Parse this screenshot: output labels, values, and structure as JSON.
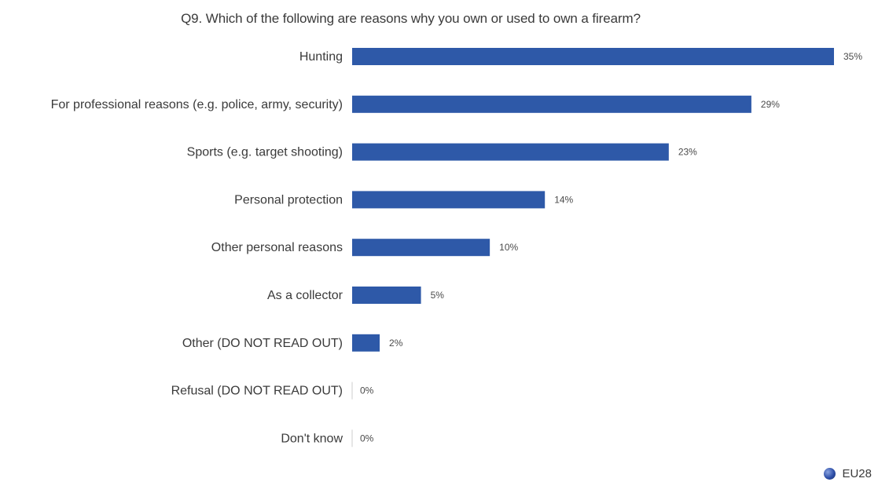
{
  "chart_data": {
    "type": "bar",
    "orientation": "horizontal",
    "title": "Q9. Which of the following are reasons why you own or used to own a firearm?",
    "categories": [
      "Hunting",
      "For professional reasons (e.g. police, army, security)",
      "Sports (e.g. target shooting)",
      "Personal protection",
      "Other personal reasons",
      "As a collector",
      "Other (DO NOT READ OUT)",
      "Refusal (DO NOT READ OUT)",
      "Don't know"
    ],
    "series": [
      {
        "name": "EU28",
        "values": [
          35,
          29,
          23,
          14,
          10,
          5,
          2,
          0,
          0
        ],
        "value_labels": [
          "35%",
          "29%",
          "23%",
          "14%",
          "10%",
          "5%",
          "2%",
          "0%",
          "0%"
        ]
      }
    ],
    "unit": "%",
    "xlim": [
      0,
      35
    ],
    "grid": false,
    "legend_position": "bottom-right"
  },
  "colors": {
    "bar": "#2e59a8",
    "baseline": "#cccccc",
    "text": "#3a3a3a"
  }
}
